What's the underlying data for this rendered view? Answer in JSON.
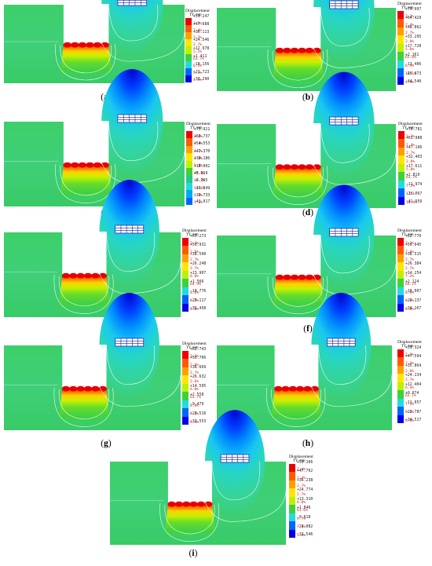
{
  "legend_title": "Displacement",
  "legend_unit": "TY, mm",
  "colors": [
    "#ee0000",
    "#ff5a00",
    "#ffa000",
    "#ffe600",
    "#bff000",
    "#3cd23c",
    "#28c88c",
    "#20dcdc",
    "#00aaf0",
    "#0064ff",
    "#0000e6"
  ],
  "icon": "building-grid-icon",
  "panels": [
    {
      "caption": "a",
      "legend_values": [
        "+59.247",
        "+47.688",
        "+36.113",
        "+24.546",
        "+12.978",
        "+1.411",
        "-10.156",
        "-21.723",
        "-33.290"
      ],
      "legend_percents": [
        "3.3%",
        "2.4%",
        "2.7%",
        "2.7%",
        "5.1%",
        "63.7%",
        "6.5%",
        "9.1%",
        "4.5%"
      ]
    },
    {
      "caption": "b",
      "legend_values": [
        "+79.997",
        "+64.429",
        "+48.862",
        "+33.295",
        "+17.728",
        "+2.161",
        "-13.406",
        "-28.973",
        "-44.540"
      ],
      "legend_percents": [
        "3.3%",
        "2.4%",
        "2.7%",
        "2.8%",
        "5.0%",
        "65.0%",
        "6.4%",
        "10.1%",
        "4.4%"
      ]
    },
    {
      "caption": "c",
      "legend_values": [
        "+75.921",
        "+66.737",
        "+54.553",
        "+42.370",
        "+30.186",
        "+18.002",
        "+5.819",
        "-6.365",
        "-18.549",
        "-30.733",
        "-42.917"
      ],
      "legend_percents": [
        "3.3%",
        "2.4%",
        "2.7%",
        "2.8%",
        "5.0%",
        "49.5%",
        "16.2%",
        "10.4%",
        "5.1%",
        "3.2%"
      ]
    },
    {
      "caption": "d",
      "legend_values": [
        "+76.781",
        "+61.988",
        "+47.196",
        "+32.403",
        "+17.611",
        "+2.819",
        "-11.974",
        "-26.767",
        "-41.559"
      ],
      "legend_percents": [
        "3.3%",
        "2.4%",
        "2.7%",
        "2.8%",
        "5.0%",
        "63.7%",
        "7.2%",
        "11.1%",
        "10.4%"
      ]
    },
    {
      "caption": "e",
      "legend_values": [
        "+63.273",
        "+50.931",
        "+38.590",
        "+26.248",
        "+13.907",
        "+1.566",
        "-10.776",
        "-23.117",
        "-35.458"
      ],
      "legend_percents": [
        "2.3%",
        "2.6%",
        "2.7%",
        "2.7%",
        "6.0%",
        "64.9%",
        "8.6%",
        "6.6%",
        "8.8%"
      ]
    },
    {
      "caption": "f",
      "legend_values": [
        "+62.776",
        "+50.645",
        "+38.515",
        "+26.384",
        "+14.254",
        "+2.124",
        "-10.007",
        "-22.137",
        "-34.267"
      ],
      "legend_percents": [
        "2.2%",
        "2.6%",
        "2.7%",
        "2.7%",
        "7.2%",
        "64.1%",
        "8.6%",
        "6.6%",
        "8.8%"
      ]
    },
    {
      "caption": "g",
      "legend_values": [
        "+62.743",
        "+50.706",
        "+38.669",
        "+26.632",
        "+14.595",
        "+2.558",
        "-9.479",
        "-21.516",
        "-33.553"
      ],
      "legend_percents": [
        "2.2%",
        "2.6%",
        "2.7%",
        "2.6%",
        "6.0%",
        "63.7%",
        "8.6%",
        "6.8%",
        "8.4%"
      ]
    },
    {
      "caption": "h",
      "legend_values": [
        "+59.324",
        "+47.594",
        "+35.864",
        "+24.134",
        "+12.404",
        "+0.674",
        "-11.057",
        "-22.787",
        "-34.517"
      ],
      "legend_percents": [
        "2.2%",
        "2.4%",
        "2.8%",
        "2.7%",
        "6.4%",
        "63.1%",
        "7.2%",
        "9.6%",
        "8.8%"
      ]
    },
    {
      "caption": "i",
      "legend_values": [
        "+59.166",
        "+47.702",
        "+36.238",
        "+24.774",
        "+13.310",
        "+1.846",
        "-9.618",
        "-21.082",
        "-32.546"
      ],
      "legend_percents": [
        "2.6%",
        "2.4%",
        "2.7%",
        "2.7%",
        "6.0%",
        "63.6%",
        "9.7%",
        "7.0%",
        "5.4%"
      ]
    }
  ]
}
